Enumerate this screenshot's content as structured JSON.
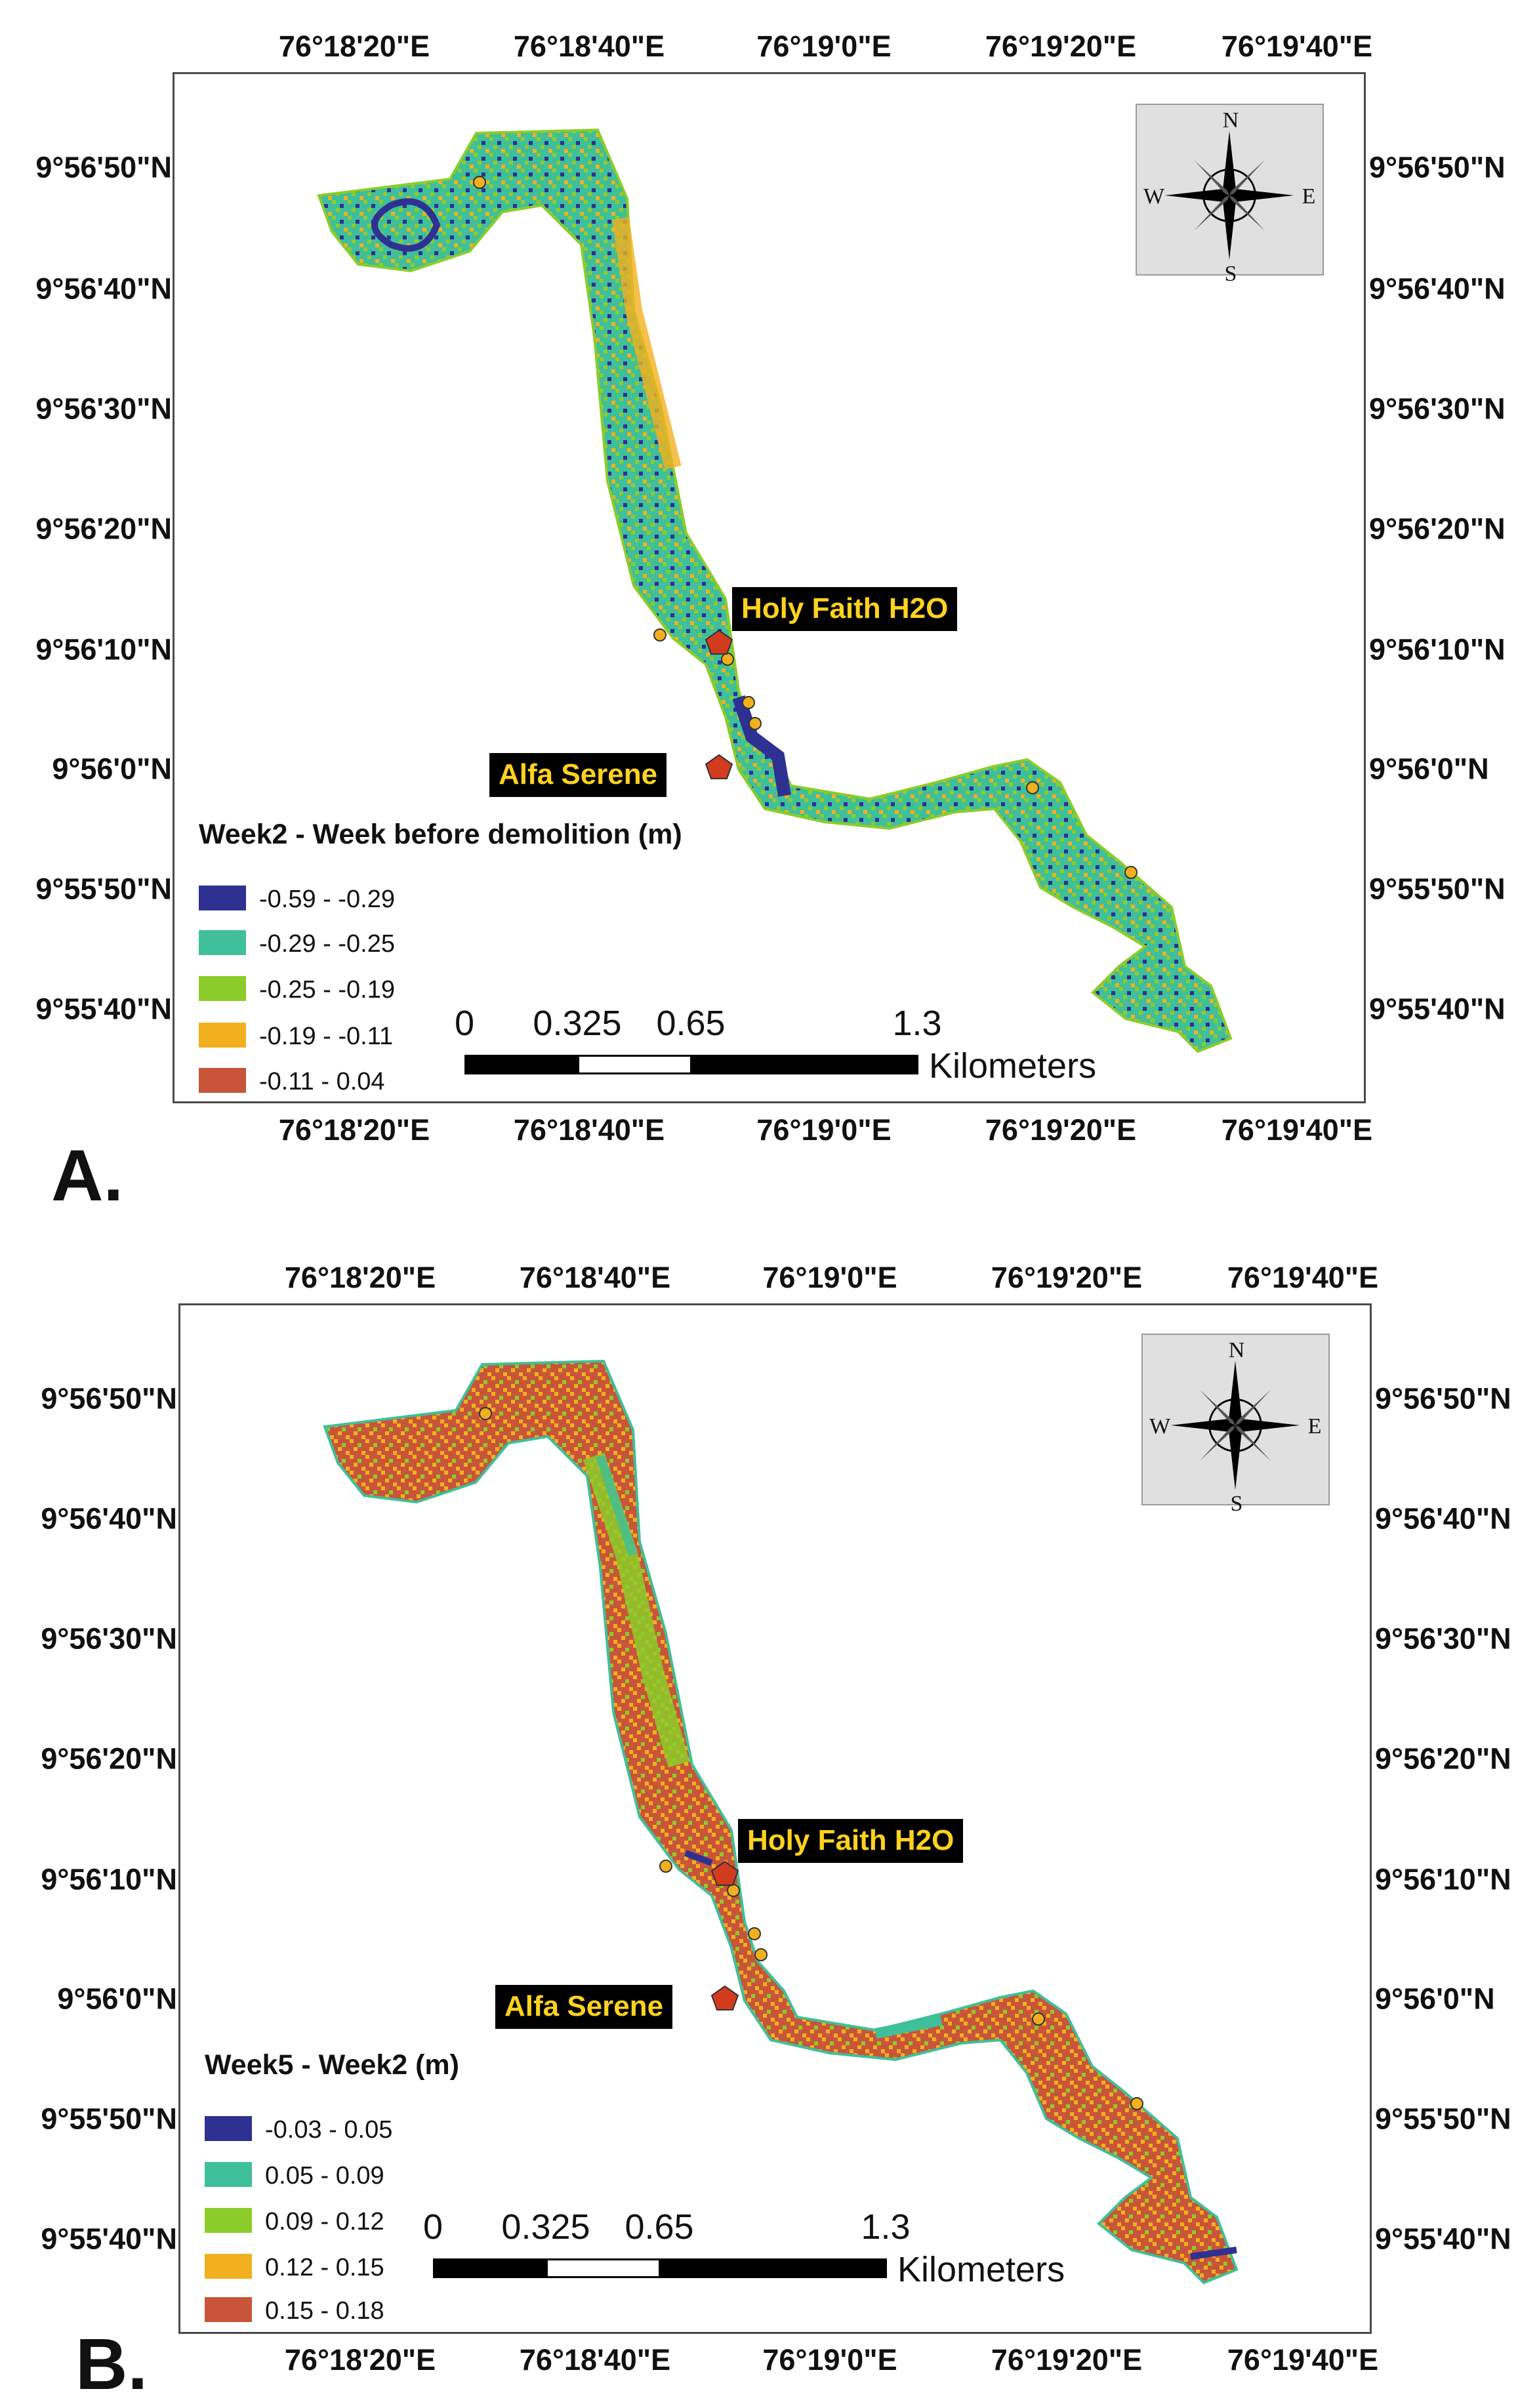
{
  "panels": [
    {
      "label": "A.",
      "top_ticks": [
        "76°18'20\"E",
        "76°18'40\"E",
        "76°19'0\"E",
        "76°19'20\"E",
        "76°19'40\"E"
      ],
      "bottom_ticks": [
        "76°18'20\"E",
        "76°18'40\"E",
        "76°19'0\"E",
        "76°19'20\"E",
        "76°19'40\"E"
      ],
      "left_ticks": [
        "9°56'50\"N",
        "9°56'40\"N",
        "9°56'30\"N",
        "9°56'20\"N",
        "9°56'10\"N",
        "9°56'0\"N",
        "9°55'50\"N",
        "9°55'40\"N"
      ],
      "right_ticks": [
        "9°56'50\"N",
        "9°56'40\"N",
        "9°56'30\"N",
        "9°56'20\"N",
        "9°56'10\"N",
        "9°56'0\"N",
        "9°55'50\"N",
        "9°55'40\"N"
      ],
      "compass": {
        "n": "N",
        "s": "S",
        "e": "E",
        "w": "W"
      },
      "callouts": {
        "holy_faith": "Holy Faith H2O",
        "alfa_serene": "Alfa Serene"
      },
      "legend": {
        "title": "Week2 - Week before demolition (m)",
        "items": [
          {
            "label": "-0.59 - -0.29",
            "color": "#2e3192"
          },
          {
            "label": "-0.29 - -0.25",
            "color": "#3fbf9a"
          },
          {
            "label": "-0.25 - -0.19",
            "color": "#8ccc2a"
          },
          {
            "label": "-0.19 - -0.11",
            "color": "#f2b01e"
          },
          {
            "label": "-0.11 -  0.04",
            "color": "#c8553a"
          }
        ]
      },
      "scalebar": {
        "ticks": [
          "0",
          "0.325",
          "0.65",
          "1.3"
        ],
        "unit": "Kilometers"
      },
      "dominant_color": "#3fbf9a"
    },
    {
      "label": "B.",
      "top_ticks": [
        "76°18'20\"E",
        "76°18'40\"E",
        "76°19'0\"E",
        "76°19'20\"E",
        "76°19'40\"E"
      ],
      "bottom_ticks": [
        "76°18'20\"E",
        "76°18'40\"E",
        "76°19'0\"E",
        "76°19'20\"E",
        "76°19'40\"E"
      ],
      "left_ticks": [
        "9°56'50\"N",
        "9°56'40\"N",
        "9°56'30\"N",
        "9°56'20\"N",
        "9°56'10\"N",
        "9°56'0\"N",
        "9°55'50\"N",
        "9°55'40\"N"
      ],
      "right_ticks": [
        "9°56'50\"N",
        "9°56'40\"N",
        "9°56'30\"N",
        "9°56'20\"N",
        "9°56'10\"N",
        "9°56'0\"N",
        "9°55'50\"N",
        "9°55'40\"N"
      ],
      "compass": {
        "n": "N",
        "s": "S",
        "e": "E",
        "w": "W"
      },
      "callouts": {
        "holy_faith": "Holy Faith H2O",
        "alfa_serene": "Alfa Serene"
      },
      "legend": {
        "title": "Week5 - Week2 (m)",
        "items": [
          {
            "label": "-0.03 - 0.05",
            "color": "#2e3192"
          },
          {
            "label": "0.05 - 0.09",
            "color": "#3fbf9a"
          },
          {
            "label": "0.09 - 0.12",
            "color": "#8ccc2a"
          },
          {
            "label": "0.12 - 0.15",
            "color": "#f2b01e"
          },
          {
            "label": "0.15 - 0.18",
            "color": "#c8553a"
          }
        ]
      },
      "scalebar": {
        "ticks": [
          "0",
          "0.325",
          "0.65",
          "1.3"
        ],
        "unit": "Kilometers"
      },
      "dominant_color": "#c8553a"
    }
  ]
}
